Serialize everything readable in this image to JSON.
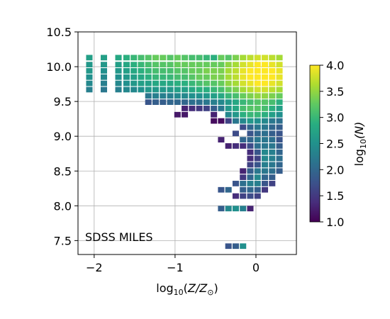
{
  "chart_data": {
    "type": "heatmap",
    "title": "",
    "annotation": "SDSS MILES",
    "xlabel_parts": {
      "base": "log",
      "sub": "10",
      "arg": "(",
      "var": "Z/Z",
      "sunsub": "⊙",
      "close": ")"
    },
    "xlim": [
      -2.2,
      0.5
    ],
    "ylim": [
      7.3,
      10.5
    ],
    "xticks": [
      {
        "value": -2,
        "label": "−2"
      },
      {
        "value": -1,
        "label": "−1"
      },
      {
        "value": 0,
        "label": "0"
      }
    ],
    "yticks": [
      {
        "value": 7.5,
        "label": "7.5"
      },
      {
        "value": 8.0,
        "label": "8.0"
      },
      {
        "value": 8.5,
        "label": "8.5"
      },
      {
        "value": 9.0,
        "label": "9.0"
      },
      {
        "value": 9.5,
        "label": "9.5"
      },
      {
        "value": 10.0,
        "label": "10.0"
      },
      {
        "value": 10.5,
        "label": "10.5"
      }
    ],
    "grid": true,
    "bin_width_x": 0.09,
    "bin_height_y": 0.09,
    "colorbar": {
      "label_parts": {
        "base": "log",
        "sub": "10",
        "arg": "(N)"
      },
      "range": [
        1.0,
        4.0
      ],
      "colormap": "viridis",
      "ticks": [
        {
          "value": 1.0,
          "label": "1.0"
        },
        {
          "value": 1.5,
          "label": "1.5"
        },
        {
          "value": 2.0,
          "label": "2.0"
        },
        {
          "value": 2.5,
          "label": "2.5"
        },
        {
          "value": 3.0,
          "label": "3.0"
        },
        {
          "value": 3.5,
          "label": "3.5"
        },
        {
          "value": 4.0,
          "label": "4.0"
        }
      ]
    },
    "cells": [
      [
        -2.06,
        10.13,
        2.7
      ],
      [
        -2.06,
        10.03,
        2.6
      ],
      [
        -2.06,
        9.94,
        2.6
      ],
      [
        -2.06,
        9.85,
        2.5
      ],
      [
        -2.06,
        9.76,
        2.4
      ],
      [
        -2.06,
        9.67,
        2.3
      ],
      [
        -1.88,
        10.13,
        2.7
      ],
      [
        -1.88,
        10.03,
        2.6
      ],
      [
        -1.88,
        9.94,
        2.5
      ],
      [
        -1.88,
        9.85,
        2.4
      ],
      [
        -1.88,
        9.76,
        2.3
      ],
      [
        -1.88,
        9.67,
        2.2
      ],
      [
        -1.7,
        10.13,
        2.8
      ],
      [
        -1.7,
        10.03,
        2.7
      ],
      [
        -1.7,
        9.94,
        2.6
      ],
      [
        -1.7,
        9.85,
        2.5
      ],
      [
        -1.7,
        9.76,
        2.4
      ],
      [
        -1.7,
        9.67,
        2.3
      ],
      [
        -1.6,
        10.13,
        2.9
      ],
      [
        -1.6,
        10.03,
        2.8
      ],
      [
        -1.6,
        9.94,
        2.7
      ],
      [
        -1.6,
        9.85,
        2.6
      ],
      [
        -1.6,
        9.76,
        2.5
      ],
      [
        -1.6,
        9.67,
        2.4
      ],
      [
        -1.51,
        10.13,
        3.0
      ],
      [
        -1.51,
        10.03,
        2.9
      ],
      [
        -1.51,
        9.94,
        2.8
      ],
      [
        -1.51,
        9.85,
        2.7
      ],
      [
        -1.51,
        9.76,
        2.6
      ],
      [
        -1.51,
        9.67,
        2.4
      ],
      [
        -1.42,
        10.13,
        3.1
      ],
      [
        -1.42,
        10.03,
        3.0
      ],
      [
        -1.42,
        9.94,
        2.9
      ],
      [
        -1.42,
        9.85,
        2.8
      ],
      [
        -1.42,
        9.76,
        2.7
      ],
      [
        -1.42,
        9.67,
        2.5
      ],
      [
        -1.33,
        10.13,
        3.2
      ],
      [
        -1.33,
        10.03,
        3.1
      ],
      [
        -1.33,
        9.94,
        3.0
      ],
      [
        -1.33,
        9.85,
        2.9
      ],
      [
        -1.33,
        9.76,
        2.7
      ],
      [
        -1.33,
        9.67,
        2.6
      ],
      [
        -1.33,
        9.58,
        2.2
      ],
      [
        -1.33,
        9.49,
        1.8
      ],
      [
        -1.24,
        10.13,
        3.3
      ],
      [
        -1.24,
        10.03,
        3.2
      ],
      [
        -1.24,
        9.94,
        3.1
      ],
      [
        -1.24,
        9.85,
        3.0
      ],
      [
        -1.24,
        9.76,
        2.8
      ],
      [
        -1.24,
        9.67,
        2.6
      ],
      [
        -1.24,
        9.58,
        2.3
      ],
      [
        -1.24,
        9.49,
        1.9
      ],
      [
        -1.15,
        10.13,
        3.3
      ],
      [
        -1.15,
        10.03,
        3.2
      ],
      [
        -1.15,
        9.94,
        3.1
      ],
      [
        -1.15,
        9.85,
        3.0
      ],
      [
        -1.15,
        9.76,
        2.8
      ],
      [
        -1.15,
        9.67,
        2.6
      ],
      [
        -1.15,
        9.58,
        2.3
      ],
      [
        -1.15,
        9.49,
        1.9
      ],
      [
        -1.06,
        10.13,
        3.2
      ],
      [
        -1.06,
        10.03,
        3.2
      ],
      [
        -1.06,
        9.94,
        3.1
      ],
      [
        -1.06,
        9.85,
        3.0
      ],
      [
        -1.06,
        9.76,
        2.8
      ],
      [
        -1.06,
        9.67,
        2.6
      ],
      [
        -1.06,
        9.58,
        2.3
      ],
      [
        -1.06,
        9.49,
        2.0
      ],
      [
        -0.97,
        10.13,
        3.3
      ],
      [
        -0.97,
        10.03,
        3.3
      ],
      [
        -0.97,
        9.94,
        3.2
      ],
      [
        -0.97,
        9.85,
        3.1
      ],
      [
        -0.97,
        9.76,
        2.9
      ],
      [
        -0.97,
        9.67,
        2.7
      ],
      [
        -0.97,
        9.58,
        2.4
      ],
      [
        -0.97,
        9.49,
        2.0
      ],
      [
        -0.97,
        9.31,
        1.2
      ],
      [
        -0.88,
        10.13,
        3.2
      ],
      [
        -0.88,
        10.03,
        3.3
      ],
      [
        -0.88,
        9.94,
        3.2
      ],
      [
        -0.88,
        9.85,
        3.1
      ],
      [
        -0.88,
        9.76,
        2.9
      ],
      [
        -0.88,
        9.67,
        2.7
      ],
      [
        -0.88,
        9.58,
        2.4
      ],
      [
        -0.88,
        9.49,
        2.0
      ],
      [
        -0.88,
        9.4,
        1.3
      ],
      [
        -0.88,
        9.31,
        1.2
      ],
      [
        -0.79,
        10.13,
        3.1
      ],
      [
        -0.79,
        10.03,
        3.3
      ],
      [
        -0.79,
        9.94,
        3.3
      ],
      [
        -0.79,
        9.85,
        3.2
      ],
      [
        -0.79,
        9.76,
        3.0
      ],
      [
        -0.79,
        9.67,
        2.8
      ],
      [
        -0.79,
        9.58,
        2.5
      ],
      [
        -0.79,
        9.49,
        2.1
      ],
      [
        -0.79,
        9.4,
        1.4
      ],
      [
        -0.7,
        10.13,
        3.1
      ],
      [
        -0.7,
        10.03,
        3.3
      ],
      [
        -0.7,
        9.94,
        3.3
      ],
      [
        -0.7,
        9.85,
        3.3
      ],
      [
        -0.7,
        9.76,
        3.1
      ],
      [
        -0.7,
        9.67,
        2.9
      ],
      [
        -0.7,
        9.58,
        2.5
      ],
      [
        -0.7,
        9.49,
        2.1
      ],
      [
        -0.7,
        9.4,
        1.5
      ],
      [
        -0.61,
        10.13,
        3.0
      ],
      [
        -0.61,
        10.03,
        3.3
      ],
      [
        -0.61,
        9.94,
        3.4
      ],
      [
        -0.61,
        9.85,
        3.3
      ],
      [
        -0.61,
        9.76,
        3.2
      ],
      [
        -0.61,
        9.67,
        2.9
      ],
      [
        -0.61,
        9.58,
        2.6
      ],
      [
        -0.61,
        9.49,
        2.2
      ],
      [
        -0.61,
        9.4,
        1.6
      ],
      [
        -0.52,
        10.13,
        2.9
      ],
      [
        -0.52,
        10.03,
        3.3
      ],
      [
        -0.52,
        9.94,
        3.4
      ],
      [
        -0.52,
        9.85,
        3.4
      ],
      [
        -0.52,
        9.76,
        3.2
      ],
      [
        -0.52,
        9.67,
        3.0
      ],
      [
        -0.52,
        9.58,
        2.7
      ],
      [
        -0.52,
        9.49,
        2.3
      ],
      [
        -0.52,
        9.4,
        1.9
      ],
      [
        -0.52,
        9.31,
        1.3
      ],
      [
        -0.52,
        9.22,
        1.1
      ],
      [
        -0.43,
        10.13,
        3.3
      ],
      [
        -0.43,
        10.03,
        3.3
      ],
      [
        -0.43,
        9.94,
        3.4
      ],
      [
        -0.43,
        9.85,
        3.4
      ],
      [
        -0.43,
        9.76,
        3.3
      ],
      [
        -0.43,
        9.67,
        3.1
      ],
      [
        -0.43,
        9.58,
        2.8
      ],
      [
        -0.43,
        9.49,
        2.4
      ],
      [
        -0.43,
        9.4,
        2.2
      ],
      [
        -0.43,
        9.22,
        1.1
      ],
      [
        -0.43,
        8.95,
        1.3
      ],
      [
        -0.43,
        8.23,
        1.8
      ],
      [
        -0.43,
        7.96,
        1.9
      ],
      [
        -0.34,
        10.13,
        3.2
      ],
      [
        -0.34,
        10.03,
        3.5
      ],
      [
        -0.34,
        9.94,
        3.6
      ],
      [
        -0.34,
        9.85,
        3.6
      ],
      [
        -0.34,
        9.76,
        3.5
      ],
      [
        -0.34,
        9.67,
        3.3
      ],
      [
        -0.34,
        9.58,
        3.0
      ],
      [
        -0.34,
        9.49,
        2.6
      ],
      [
        -0.34,
        9.4,
        2.6
      ],
      [
        -0.34,
        9.31,
        2.4
      ],
      [
        -0.34,
        9.22,
        1.6
      ],
      [
        -0.34,
        8.86,
        1.3
      ],
      [
        -0.34,
        8.23,
        2.0
      ],
      [
        -0.34,
        7.96,
        2.4
      ],
      [
        -0.34,
        7.42,
        1.8
      ],
      [
        -0.25,
        10.13,
        3.4
      ],
      [
        -0.25,
        10.03,
        3.6
      ],
      [
        -0.25,
        9.94,
        3.7
      ],
      [
        -0.25,
        9.85,
        3.7
      ],
      [
        -0.25,
        9.76,
        3.6
      ],
      [
        -0.25,
        9.67,
        3.4
      ],
      [
        -0.25,
        9.58,
        3.1
      ],
      [
        -0.25,
        9.49,
        2.8
      ],
      [
        -0.25,
        9.4,
        2.8
      ],
      [
        -0.25,
        9.31,
        2.6
      ],
      [
        -0.25,
        9.22,
        2.2
      ],
      [
        -0.25,
        9.04,
        1.7
      ],
      [
        -0.25,
        8.86,
        1.4
      ],
      [
        -0.25,
        8.32,
        1.8
      ],
      [
        -0.25,
        8.14,
        1.4
      ],
      [
        -0.25,
        7.96,
        2.5
      ],
      [
        -0.25,
        7.42,
        1.9
      ],
      [
        -0.16,
        10.13,
        3.6
      ],
      [
        -0.16,
        10.03,
        3.8
      ],
      [
        -0.16,
        9.94,
        3.9
      ],
      [
        -0.16,
        9.85,
        3.9
      ],
      [
        -0.16,
        9.76,
        3.8
      ],
      [
        -0.16,
        9.67,
        3.6
      ],
      [
        -0.16,
        9.58,
        3.3
      ],
      [
        -0.16,
        9.49,
        3.0
      ],
      [
        -0.16,
        9.4,
        3.1
      ],
      [
        -0.16,
        9.31,
        2.9
      ],
      [
        -0.16,
        9.22,
        2.4
      ],
      [
        -0.16,
        9.13,
        1.7
      ],
      [
        -0.16,
        8.95,
        2.0
      ],
      [
        -0.16,
        8.86,
        1.4
      ],
      [
        -0.16,
        8.5,
        1.3
      ],
      [
        -0.16,
        8.41,
        1.5
      ],
      [
        -0.16,
        8.32,
        2.1
      ],
      [
        -0.16,
        8.23,
        1.9
      ],
      [
        -0.16,
        8.14,
        1.6
      ],
      [
        -0.16,
        7.96,
        2.3
      ],
      [
        -0.16,
        7.42,
        2.5
      ],
      [
        -0.07,
        10.13,
        3.7
      ],
      [
        -0.07,
        10.03,
        3.9
      ],
      [
        -0.07,
        9.94,
        4.0
      ],
      [
        -0.07,
        9.85,
        4.0
      ],
      [
        -0.07,
        9.76,
        3.9
      ],
      [
        -0.07,
        9.67,
        3.7
      ],
      [
        -0.07,
        9.58,
        3.4
      ],
      [
        -0.07,
        9.49,
        3.1
      ],
      [
        -0.07,
        9.4,
        3.2
      ],
      [
        -0.07,
        9.31,
        3.0
      ],
      [
        -0.07,
        9.22,
        2.6
      ],
      [
        -0.07,
        9.13,
        2.0
      ],
      [
        -0.07,
        9.04,
        1.8
      ],
      [
        -0.07,
        8.95,
        2.0
      ],
      [
        -0.07,
        8.86,
        1.7
      ],
      [
        -0.07,
        8.77,
        1.4
      ],
      [
        -0.07,
        8.68,
        1.4
      ],
      [
        -0.07,
        8.59,
        1.6
      ],
      [
        -0.07,
        8.5,
        1.9
      ],
      [
        -0.07,
        8.41,
        2.0
      ],
      [
        -0.07,
        8.32,
        2.3
      ],
      [
        -0.07,
        8.23,
        2.0
      ],
      [
        -0.07,
        8.14,
        1.7
      ],
      [
        -0.07,
        7.96,
        1.3
      ],
      [
        0.02,
        10.13,
        3.8
      ],
      [
        0.02,
        10.03,
        4.0
      ],
      [
        0.02,
        9.94,
        4.0
      ],
      [
        0.02,
        9.85,
        4.0
      ],
      [
        0.02,
        9.76,
        4.0
      ],
      [
        0.02,
        9.67,
        3.8
      ],
      [
        0.02,
        9.58,
        3.5
      ],
      [
        0.02,
        9.49,
        3.2
      ],
      [
        0.02,
        9.4,
        3.2
      ],
      [
        0.02,
        9.31,
        3.0
      ],
      [
        0.02,
        9.22,
        2.5
      ],
      [
        0.02,
        9.13,
        2.2
      ],
      [
        0.02,
        9.04,
        2.0
      ],
      [
        0.02,
        8.95,
        2.2
      ],
      [
        0.02,
        8.86,
        2.1
      ],
      [
        0.02,
        8.77,
        1.8
      ],
      [
        0.02,
        8.68,
        1.6
      ],
      [
        0.02,
        8.59,
        1.8
      ],
      [
        0.02,
        8.5,
        2.2
      ],
      [
        0.02,
        8.41,
        2.4
      ],
      [
        0.02,
        8.32,
        2.3
      ],
      [
        0.02,
        8.23,
        1.9
      ],
      [
        0.02,
        8.14,
        1.6
      ],
      [
        0.11,
        10.13,
        3.8
      ],
      [
        0.11,
        10.03,
        4.0
      ],
      [
        0.11,
        9.94,
        4.0
      ],
      [
        0.11,
        9.85,
        4.0
      ],
      [
        0.11,
        9.76,
        4.0
      ],
      [
        0.11,
        9.67,
        3.8
      ],
      [
        0.11,
        9.58,
        3.5
      ],
      [
        0.11,
        9.49,
        3.2
      ],
      [
        0.11,
        9.4,
        3.1
      ],
      [
        0.11,
        9.31,
        2.9
      ],
      [
        0.11,
        9.22,
        2.4
      ],
      [
        0.11,
        9.13,
        2.2
      ],
      [
        0.11,
        9.04,
        2.1
      ],
      [
        0.11,
        8.95,
        2.2
      ],
      [
        0.11,
        8.86,
        2.2
      ],
      [
        0.11,
        8.77,
        2.4
      ],
      [
        0.11,
        8.68,
        2.4
      ],
      [
        0.11,
        8.59,
        2.3
      ],
      [
        0.11,
        8.5,
        2.2
      ],
      [
        0.11,
        8.41,
        2.0
      ],
      [
        0.11,
        8.32,
        1.8
      ],
      [
        0.11,
        8.23,
        1.5
      ],
      [
        0.2,
        10.13,
        3.7
      ],
      [
        0.2,
        10.03,
        3.9
      ],
      [
        0.2,
        9.94,
        4.0
      ],
      [
        0.2,
        9.85,
        4.0
      ],
      [
        0.2,
        9.76,
        3.9
      ],
      [
        0.2,
        9.67,
        3.7
      ],
      [
        0.2,
        9.58,
        3.4
      ],
      [
        0.2,
        9.49,
        3.1
      ],
      [
        0.2,
        9.4,
        2.9
      ],
      [
        0.2,
        9.31,
        2.7
      ],
      [
        0.2,
        9.22,
        2.2
      ],
      [
        0.2,
        9.13,
        2.0
      ],
      [
        0.2,
        9.04,
        1.9
      ],
      [
        0.2,
        8.95,
        2.1
      ],
      [
        0.2,
        8.86,
        2.2
      ],
      [
        0.2,
        8.77,
        2.3
      ],
      [
        0.2,
        8.68,
        2.3
      ],
      [
        0.2,
        8.59,
        2.2
      ],
      [
        0.2,
        8.5,
        2.1
      ],
      [
        0.2,
        8.41,
        1.9
      ],
      [
        0.2,
        8.32,
        1.6
      ],
      [
        0.29,
        10.13,
        3.6
      ],
      [
        0.29,
        10.03,
        3.8
      ],
      [
        0.29,
        9.94,
        3.9
      ],
      [
        0.29,
        9.85,
        3.9
      ],
      [
        0.29,
        9.76,
        3.8
      ],
      [
        0.29,
        9.67,
        3.6
      ],
      [
        0.29,
        9.58,
        3.3
      ],
      [
        0.29,
        9.49,
        2.9
      ],
      [
        0.29,
        9.4,
        2.7
      ],
      [
        0.29,
        9.31,
        2.5
      ],
      [
        0.29,
        9.22,
        2.1
      ],
      [
        0.29,
        9.13,
        1.9
      ],
      [
        0.29,
        9.04,
        1.8
      ],
      [
        0.29,
        8.95,
        1.8
      ],
      [
        0.29,
        8.86,
        1.9
      ],
      [
        0.29,
        8.77,
        2.0
      ],
      [
        0.29,
        8.68,
        2.1
      ],
      [
        0.29,
        8.59,
        2.0
      ],
      [
        0.29,
        8.5,
        1.9
      ]
    ]
  }
}
